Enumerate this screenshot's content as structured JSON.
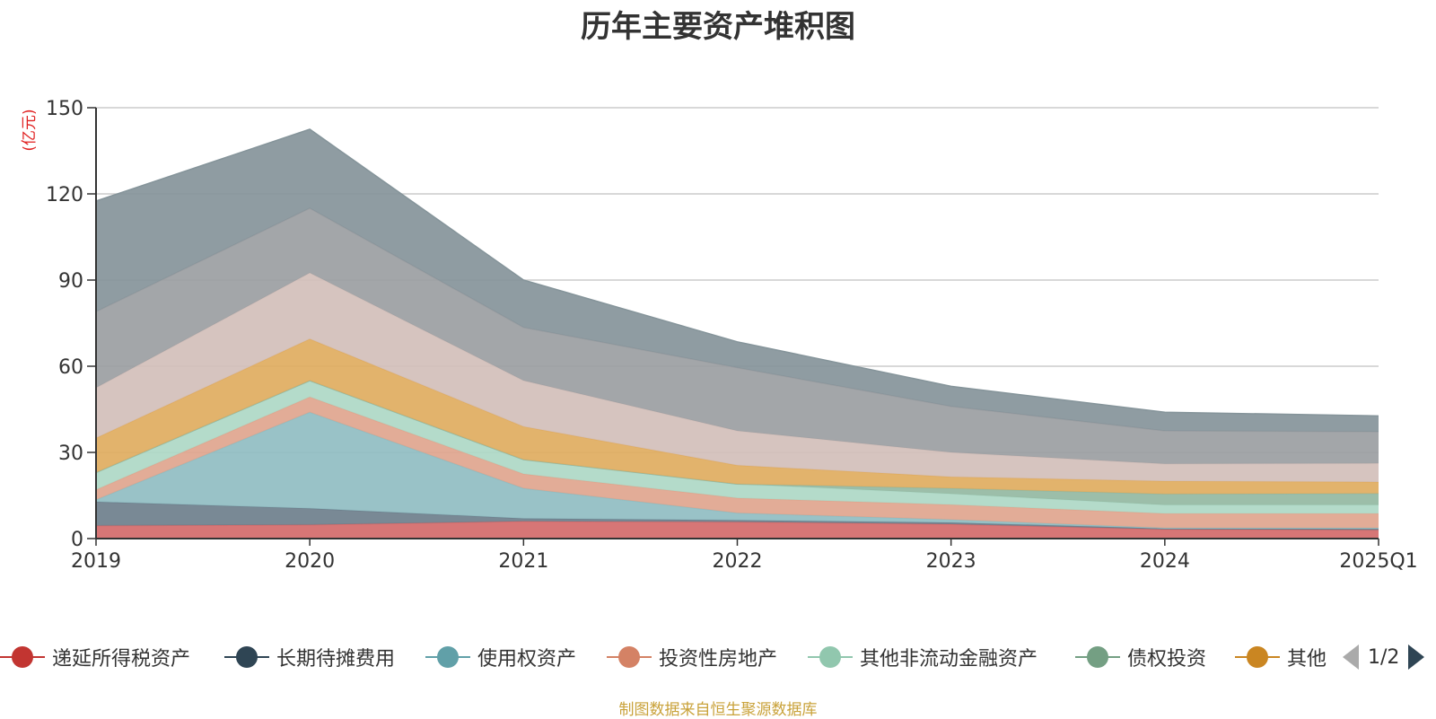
{
  "chart_data": {
    "type": "area",
    "title": "历年主要资产堆积图",
    "ylabel": "(亿元)",
    "categories": [
      "2019",
      "2020",
      "2021",
      "2022",
      "2023",
      "2024",
      "2025Q1"
    ],
    "ylim": [
      0,
      150
    ],
    "yticks": [
      0,
      30,
      60,
      90,
      120,
      150
    ],
    "grid": true,
    "stacked": true,
    "legend_position": "bottom",
    "series": [
      {
        "name": "递延所得税资产",
        "color": "#d46a6a",
        "legend_color": "#c23531",
        "values": [
          4.5,
          4.8,
          6.0,
          5.8,
          5.0,
          3.2,
          3.0
        ]
      },
      {
        "name": "长期待摊费用",
        "color": "#6e7f8c",
        "legend_color": "#2f4554",
        "values": [
          8.3,
          5.7,
          1.0,
          0.6,
          0.6,
          0.3,
          0.4
        ]
      },
      {
        "name": "使用权资产",
        "color": "#90bdc2",
        "legend_color": "#61a0a8",
        "values": [
          0.7,
          33.5,
          10.5,
          2.5,
          1.0,
          0.2,
          0.3
        ]
      },
      {
        "name": "投资性房地产",
        "color": "#e0a58e",
        "legend_color": "#d48265",
        "values": [
          3.5,
          5.3,
          5.0,
          5.2,
          5.2,
          5.0,
          5.0
        ]
      },
      {
        "name": "其他非流动金融资产",
        "color": "#aed8c6",
        "legend_color": "#91c7ae",
        "values": [
          6.0,
          5.7,
          5.0,
          4.9,
          3.8,
          3.0,
          3.0
        ]
      },
      {
        "name": "债权投资",
        "color": "#94b8a2",
        "legend_color": "#749f83",
        "values": [
          0.0,
          0.0,
          0.0,
          0.0,
          1.9,
          3.8,
          4.0
        ]
      },
      {
        "name": "其他",
        "color": "#e0ac60",
        "legend_color": "#ca8622",
        "values": [
          12.0,
          14.5,
          11.5,
          6.5,
          4.0,
          4.5,
          4.0
        ]
      },
      {
        "name": "",
        "color": "#d2bfba",
        "values": [
          17.5,
          23.0,
          16.0,
          12.0,
          8.5,
          6.0,
          6.5
        ]
      },
      {
        "name": "",
        "color": "#9b9ea2",
        "values": [
          26.5,
          22.5,
          18.5,
          22.0,
          16.0,
          11.5,
          11.0
        ]
      },
      {
        "name": "",
        "color": "#85949a",
        "values": [
          38.5,
          27.5,
          16.5,
          9.0,
          7.0,
          6.5,
          5.5
        ]
      }
    ],
    "source_note": "制图数据来自恒生聚源数据库"
  },
  "legend": {
    "page_label": "1/2",
    "items": [
      {
        "label": "递延所得税资产",
        "color": "#c23531"
      },
      {
        "label": "长期待摊费用",
        "color": "#2f4554"
      },
      {
        "label": "使用权资产",
        "color": "#61a0a8"
      },
      {
        "label": "投资性房地产",
        "color": "#d48265"
      },
      {
        "label": "其他非流动金融资产",
        "color": "#91c7ae"
      },
      {
        "label": "债权投资",
        "color": "#749f83"
      },
      {
        "label": "其他",
        "color": "#ca8622"
      }
    ]
  }
}
